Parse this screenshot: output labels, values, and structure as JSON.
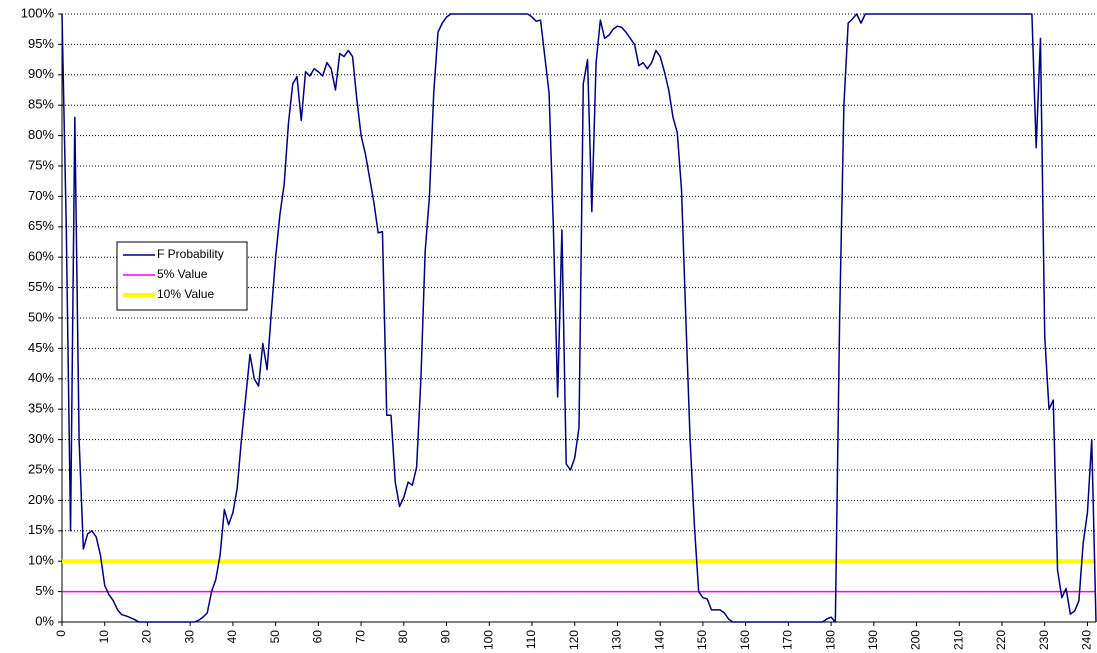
{
  "chart_data": {
    "type": "line",
    "x": [
      0,
      1,
      2,
      3,
      4,
      5,
      6,
      7,
      8,
      9,
      10,
      11,
      12,
      13,
      14,
      15,
      16,
      17,
      18,
      19,
      20,
      21,
      22,
      23,
      24,
      25,
      26,
      27,
      28,
      29,
      30,
      31,
      32,
      33,
      34,
      35,
      36,
      37,
      38,
      39,
      40,
      41,
      42,
      43,
      44,
      45,
      46,
      47,
      48,
      49,
      50,
      51,
      52,
      53,
      54,
      55,
      56,
      57,
      58,
      59,
      60,
      61,
      62,
      63,
      64,
      65,
      66,
      67,
      68,
      69,
      70,
      71,
      72,
      73,
      74,
      75,
      76,
      77,
      78,
      79,
      80,
      81,
      82,
      83,
      84,
      85,
      86,
      87,
      88,
      89,
      90,
      91,
      92,
      93,
      94,
      95,
      96,
      97,
      98,
      99,
      100,
      101,
      102,
      103,
      104,
      105,
      106,
      107,
      108,
      109,
      110,
      111,
      112,
      113,
      114,
      115,
      116,
      117,
      118,
      119,
      120,
      121,
      122,
      123,
      124,
      125,
      126,
      127,
      128,
      129,
      130,
      131,
      132,
      133,
      134,
      135,
      136,
      137,
      138,
      139,
      140,
      141,
      142,
      143,
      144,
      145,
      146,
      147,
      148,
      149,
      150,
      151,
      152,
      153,
      154,
      155,
      156,
      157,
      158,
      159,
      160,
      161,
      162,
      163,
      164,
      165,
      166,
      167,
      168,
      169,
      170,
      171,
      172,
      173,
      174,
      175,
      176,
      177,
      178,
      179,
      180,
      181,
      182,
      183,
      184,
      185,
      186,
      187,
      188,
      189,
      190,
      191,
      192,
      193,
      194,
      195,
      196,
      197,
      198,
      199,
      200,
      201,
      202,
      203,
      204,
      205,
      206,
      207,
      208,
      209,
      210,
      211,
      212,
      213,
      214,
      215,
      216,
      217,
      218,
      219,
      220,
      221,
      222,
      223,
      224,
      225,
      226,
      227,
      228,
      229,
      230,
      231,
      232,
      233,
      234,
      235,
      236,
      237,
      238,
      239,
      240,
      241,
      242
    ],
    "series": [
      {
        "name": "F Probability",
        "color": "#000080",
        "values": [
          100,
          65,
          15,
          83,
          30,
          12,
          14.5,
          15,
          14,
          11,
          6,
          4.5,
          3.5,
          2,
          1.2,
          1,
          0.7,
          0.4,
          0,
          0,
          0,
          0,
          0,
          0,
          0,
          0,
          0,
          0,
          0,
          0,
          0,
          0,
          0.3,
          0.8,
          1.5,
          5,
          7,
          11,
          18.5,
          16,
          18,
          22,
          30,
          37,
          44,
          40,
          38.8,
          45.8,
          41.5,
          51,
          60,
          67,
          72,
          82,
          88.5,
          89.7,
          82.5,
          90.5,
          89.8,
          91,
          90.5,
          89.8,
          92,
          91,
          87.5,
          93.5,
          93,
          94,
          93,
          86,
          80,
          77,
          73,
          69,
          64,
          64.2,
          34,
          34,
          23,
          19,
          20.5,
          23,
          22.5,
          25.5,
          40,
          61,
          70,
          87,
          97,
          98.5,
          99.5,
          100,
          100,
          100,
          100,
          100,
          100,
          100,
          100,
          100,
          100,
          100,
          100,
          100,
          100,
          100,
          100,
          100,
          100,
          100,
          99.5,
          98.8,
          99,
          93,
          87,
          65,
          37,
          64.5,
          26,
          25,
          27,
          32,
          88.5,
          92.5,
          67.5,
          92,
          99,
          96,
          96.5,
          97.5,
          98,
          97.8,
          97,
          96,
          95,
          91.5,
          92,
          91,
          92,
          94,
          93,
          90.5,
          87.5,
          83,
          80.5,
          71,
          50,
          30,
          16,
          5,
          4,
          3.8,
          2,
          2,
          2,
          1.5,
          0.5,
          0,
          0,
          0,
          0,
          0,
          0,
          0,
          0,
          0,
          0,
          0,
          0,
          0,
          0,
          0,
          0,
          0,
          0,
          0,
          0,
          0,
          0,
          0.5,
          0.8,
          0,
          50,
          85,
          98.5,
          99.2,
          100,
          98.5,
          100,
          100,
          100,
          100,
          100,
          100,
          100,
          100,
          100,
          100,
          100,
          100,
          100,
          100,
          100,
          100,
          100,
          100,
          100,
          100,
          100,
          100,
          100,
          100,
          100,
          100,
          100,
          100,
          100,
          100,
          100,
          100,
          100,
          100,
          100,
          100,
          100,
          100,
          100,
          100,
          78,
          96,
          47,
          35,
          36.5,
          8.5,
          4,
          5.5,
          1.3,
          1.8,
          3.5,
          13,
          18,
          30,
          0
        ]
      },
      {
        "name": "5% Value",
        "color": "#ff00ff",
        "x": [
          0,
          242
        ],
        "values": [
          5,
          5
        ]
      },
      {
        "name": "10% Value",
        "color": "#ffff00",
        "x": [
          0,
          242
        ],
        "values": [
          10,
          10
        ]
      }
    ],
    "xlim": [
      0,
      242
    ],
    "xticks": [
      0,
      10,
      20,
      30,
      40,
      50,
      60,
      70,
      80,
      90,
      100,
      110,
      120,
      130,
      140,
      150,
      160,
      170,
      180,
      190,
      200,
      210,
      220,
      230,
      240
    ],
    "ylim": [
      0,
      100
    ],
    "yticks": [
      {
        "value": 0,
        "label": "0%"
      },
      {
        "value": 5,
        "label": "5%"
      },
      {
        "value": 10,
        "label": "10%"
      },
      {
        "value": 15,
        "label": "15%"
      },
      {
        "value": 20,
        "label": "20%"
      },
      {
        "value": 25,
        "label": "25%"
      },
      {
        "value": 30,
        "label": "30%"
      },
      {
        "value": 35,
        "label": "35%"
      },
      {
        "value": 40,
        "label": "40%"
      },
      {
        "value": 45,
        "label": "45%"
      },
      {
        "value": 50,
        "label": "50%"
      },
      {
        "value": 55,
        "label": "55%"
      },
      {
        "value": 60,
        "label": "60%"
      },
      {
        "value": 65,
        "label": "65%"
      },
      {
        "value": 70,
        "label": "70%"
      },
      {
        "value": 75,
        "label": "75%"
      },
      {
        "value": 80,
        "label": "80%"
      },
      {
        "value": 85,
        "label": "85%"
      },
      {
        "value": 90,
        "label": "90%"
      },
      {
        "value": 95,
        "label": "95%"
      },
      {
        "value": 100,
        "label": "100%"
      }
    ],
    "grid": true
  }
}
